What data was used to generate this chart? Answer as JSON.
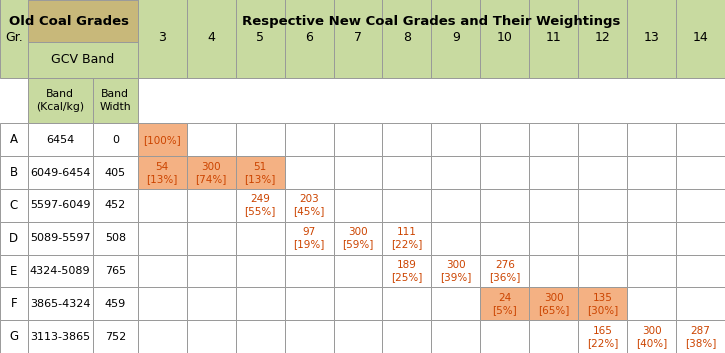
{
  "title_left": "Old Coal Grades",
  "title_right": "Respective New Coal Grades and Their Weightings",
  "header_color_old": "#c8b87a",
  "header_color_new": "#b5c97a",
  "header_color_gcv": "#c8daa0",
  "cell_color_orange": "#f4b183",
  "cell_color_white": "#ffffff",
  "border_color": "#999999",
  "text_color_black": "#000000",
  "text_color_orange": "#cc4400",
  "new_grade_cols": [
    "3",
    "4",
    "5",
    "6",
    "7",
    "8",
    "9",
    "10",
    "11",
    "12",
    "13",
    "14"
  ],
  "row_data": [
    {
      "grade": "A",
      "band": "6454",
      "width": "0",
      "cells": {
        "3": {
          "text": "[100%]",
          "hl": true
        },
        "4": "",
        "5": "",
        "6": "",
        "7": "",
        "8": "",
        "9": "",
        "10": "",
        "11": "",
        "12": "",
        "13": "",
        "14": ""
      }
    },
    {
      "grade": "B",
      "band": "6049-6454",
      "width": "405",
      "cells": {
        "3": {
          "text": "54\n[13%]",
          "hl": true
        },
        "4": {
          "text": "300\n[74%]",
          "hl": true
        },
        "5": {
          "text": "51\n[13%]",
          "hl": true
        },
        "6": "",
        "7": "",
        "8": "",
        "9": "",
        "10": "",
        "11": "",
        "12": "",
        "13": "",
        "14": ""
      }
    },
    {
      "grade": "C",
      "band": "5597-6049",
      "width": "452",
      "cells": {
        "3": "",
        "4": "",
        "5": {
          "text": "249\n[55%]",
          "hl": false
        },
        "6": {
          "text": "203\n[45%]",
          "hl": false
        },
        "7": "",
        "8": "",
        "9": "",
        "10": "",
        "11": "",
        "12": "",
        "13": "",
        "14": ""
      }
    },
    {
      "grade": "D",
      "band": "5089-5597",
      "width": "508",
      "cells": {
        "3": "",
        "4": "",
        "5": "",
        "6": {
          "text": "97\n[19%]",
          "hl": false
        },
        "7": {
          "text": "300\n[59%]",
          "hl": false
        },
        "8": {
          "text": "111\n[22%]",
          "hl": false
        },
        "9": "",
        "10": "",
        "11": "",
        "12": "",
        "13": "",
        "14": ""
      }
    },
    {
      "grade": "E",
      "band": "4324-5089",
      "width": "765",
      "cells": {
        "3": "",
        "4": "",
        "5": "",
        "6": "",
        "7": "",
        "8": {
          "text": "189\n[25%]",
          "hl": false
        },
        "9": {
          "text": "300\n[39%]",
          "hl": false
        },
        "10": {
          "text": "276\n[36%]",
          "hl": false
        },
        "11": "",
        "12": "",
        "13": "",
        "14": ""
      }
    },
    {
      "grade": "F",
      "band": "3865-4324",
      "width": "459",
      "cells": {
        "3": "",
        "4": "",
        "5": "",
        "6": "",
        "7": "",
        "8": "",
        "9": "",
        "10": {
          "text": "24\n[5%]",
          "hl": true
        },
        "11": {
          "text": "300\n[65%]",
          "hl": true
        },
        "12": {
          "text": "135\n[30%]",
          "hl": true
        },
        "13": "",
        "14": ""
      }
    },
    {
      "grade": "G",
      "band": "3113-3865",
      "width": "752",
      "cells": {
        "3": "",
        "4": "",
        "5": "",
        "6": "",
        "7": "",
        "8": "",
        "9": "",
        "10": "",
        "11": "",
        "12": {
          "text": "165\n[22%]",
          "hl": false
        },
        "13": {
          "text": "300\n[40%]",
          "hl": false
        },
        "14": {
          "text": "287\n[38%]",
          "hl": false
        }
      }
    }
  ],
  "figsize": [
    7.25,
    3.53
  ],
  "dpi": 100
}
